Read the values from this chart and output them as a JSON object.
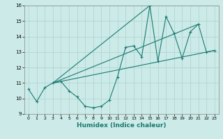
{
  "xlabel": "Humidex (Indice chaleur)",
  "xlim": [
    -0.5,
    23.5
  ],
  "ylim": [
    9,
    16
  ],
  "xticks": [
    0,
    1,
    2,
    3,
    4,
    5,
    6,
    7,
    8,
    9,
    10,
    11,
    12,
    13,
    14,
    15,
    16,
    17,
    18,
    19,
    20,
    21,
    22,
    23
  ],
  "yticks": [
    9,
    10,
    11,
    12,
    13,
    14,
    15,
    16
  ],
  "bg_color": "#cceae7",
  "line_color": "#1a7a72",
  "grid_color": "#aad4d0",
  "series": [
    [
      0,
      10.6
    ],
    [
      1,
      9.8
    ],
    [
      2,
      10.7
    ],
    [
      3,
      11.0
    ],
    [
      4,
      11.1
    ],
    [
      5,
      10.5
    ],
    [
      6,
      10.1
    ],
    [
      7,
      9.5
    ],
    [
      8,
      9.4
    ],
    [
      9,
      9.5
    ],
    [
      10,
      9.9
    ],
    [
      11,
      11.4
    ],
    [
      12,
      13.3
    ],
    [
      13,
      13.4
    ],
    [
      14,
      12.7
    ],
    [
      15,
      16.0
    ],
    [
      16,
      12.4
    ],
    [
      17,
      15.3
    ],
    [
      18,
      14.2
    ],
    [
      19,
      12.6
    ],
    [
      20,
      14.3
    ],
    [
      21,
      14.8
    ],
    [
      22,
      13.0
    ],
    [
      23,
      13.1
    ]
  ],
  "line2": [
    [
      3,
      11.0
    ],
    [
      23,
      13.1
    ]
  ],
  "line3": [
    [
      3,
      11.0
    ],
    [
      15,
      16.0
    ]
  ],
  "line4": [
    [
      3,
      11.0
    ],
    [
      21,
      14.8
    ]
  ]
}
